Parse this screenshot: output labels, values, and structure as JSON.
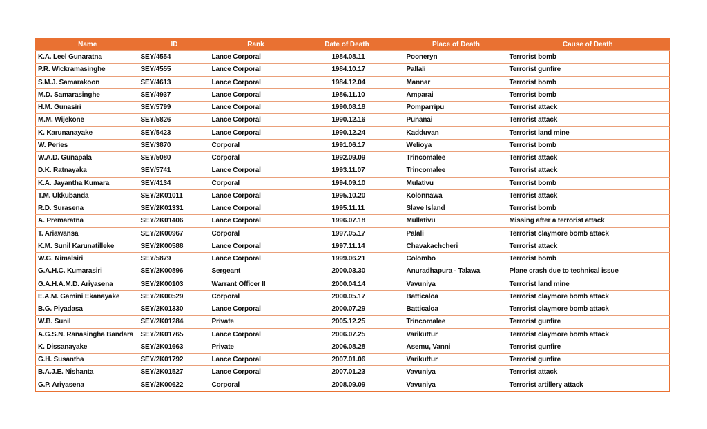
{
  "table": {
    "columns": [
      "Name",
      "ID",
      "Rank",
      "Date of Death",
      "Place of Death",
      "Cause of Death"
    ],
    "rows": [
      [
        "K.A. Leel Gunaratna",
        "SEY/4554",
        "Lance Corporal",
        "1984.08.11",
        "Pooneryn",
        "Terrorist bomb"
      ],
      [
        "P.R. Wickramasinghe",
        "SEY/4555",
        "Lance Corporal",
        "1984.10.17",
        "Pallali",
        "Terrorist gunfire"
      ],
      [
        "S.M.J. Samarakoon",
        "SEY/4613",
        "Lance Corporal",
        "1984.12.04",
        "Mannar",
        "Terrorist bomb"
      ],
      [
        "M.D. Samarasinghe",
        "SEY/4937",
        "Lance Corporal",
        "1986.11.10",
        "Amparai",
        "Terrorist bomb"
      ],
      [
        "H.M. Gunasiri",
        "SEY/5799",
        "Lance Corporal",
        "1990.08.18",
        "Pomparripu",
        "Terrorist attack"
      ],
      [
        "M.M. Wijekone",
        "SEY/5826",
        "Lance Corporal",
        "1990.12.16",
        "Punanai",
        "Terrorist attack"
      ],
      [
        "K. Karunanayake",
        "SEY/5423",
        "Lance Corporal",
        "1990.12.24",
        "Kadduvan",
        "Terrorist land mine"
      ],
      [
        "W. Peries",
        "SEY/3870",
        "Corporal",
        "1991.06.17",
        "Welioya",
        "Terrorist bomb"
      ],
      [
        "W.A.D. Gunapala",
        "SEY/5080",
        "Corporal",
        "1992.09.09",
        "Trincomalee",
        "Terrorist attack"
      ],
      [
        "D.K. Ratnayaka",
        "SEY/5741",
        "Lance Corporal",
        "1993.11.07",
        "Trincomalee",
        "Terrorist attack"
      ],
      [
        "K.A. Jayantha Kumara",
        "SEY/4134",
        "Corporal",
        "1994.09.10",
        "Mulativu",
        "Terrorist bomb"
      ],
      [
        "T.M. Ukkubanda",
        "SEY/2K01011",
        "Lance Corporal",
        "1995.10.20",
        "Kolonnawa",
        "Terrorist attack"
      ],
      [
        "R.D. Surasena",
        "SEY/2K01331",
        "Lance Corporal",
        "1995.11.11",
        "Slave Island",
        "Terrorist bomb"
      ],
      [
        "A. Premaratna",
        "SEY/2K01406",
        "Lance Corporal",
        "1996.07.18",
        "Mullativu",
        "Missing after a terrorist attack"
      ],
      [
        "T. Ariawansa",
        "SEY/2K00967",
        "Corporal",
        "1997.05.17",
        "Palali",
        "Terrorist claymore bomb attack"
      ],
      [
        "K.M. Sunil Karunatilleke",
        "SEY/2K00588",
        "Lance Corporal",
        "1997.11.14",
        "Chavakachcheri",
        "Terrorist attack"
      ],
      [
        "W.G. Nimalsiri",
        "SEY/5879",
        "Lance Corporal",
        "1999.06.21",
        "Colombo",
        "Terrorist bomb"
      ],
      [
        "G.A.H.C. Kumarasiri",
        "SEY/2K00896",
        "Sergeant",
        "2000.03.30",
        "Anuradhapura - Talawa",
        "Plane crash due to technical issue"
      ],
      [
        "G.A.H.A.M.D.  Ariyasena",
        "SEY/2K00103",
        "Warrant Officer II",
        "2000.04.14",
        "Vavuniya",
        "Terrorist land mine"
      ],
      [
        "E.A.M. Gamini Ekanayake",
        "SEY/2K00529",
        "Corporal",
        "2000.05.17",
        "Batticaloa",
        "Terrorist claymore bomb attack"
      ],
      [
        "B.G. Piyadasa",
        "SEY/2K01330",
        "Lance Corporal",
        "2000.07.29",
        "Batticaloa",
        "Terrorist claymore bomb attack"
      ],
      [
        "W.B. Sunil",
        "SEY/2K01284",
        "Private",
        "2005.12.25",
        "Trincomalee",
        "Terrorist gunfire"
      ],
      [
        "A.G.S.N. Ranasingha Bandara",
        "SEY/2K01765",
        "Lance Corporal",
        "2006.07.25",
        "Varikuttur",
        "Terrorist claymore bomb attack"
      ],
      [
        "K. Dissanayake",
        "SEY/2K01663",
        "Private",
        "2006.08.28",
        "Asemu, Vanni",
        "Terrorist gunfire"
      ],
      [
        "G.H. Susantha",
        "SEY/2K01792",
        "Lance Corporal",
        "2007.01.06",
        "Varikuttur",
        "Terrorist gunfire"
      ],
      [
        "B.A.J.E. Nishanta",
        "SEY/2K01527",
        "Lance Corporal",
        "2007.01.23",
        "Vavuniya",
        "Terrorist attack"
      ],
      [
        "G.P. Ariyasena",
        "SEY/2K00622",
        "Corporal",
        "2008.09.09",
        "Vavuniya",
        "Terrorist artillery attack"
      ]
    ]
  },
  "colors": {
    "header_bg": "#e97132",
    "header_text": "#ffffff",
    "row_border": "#eaa07a"
  }
}
